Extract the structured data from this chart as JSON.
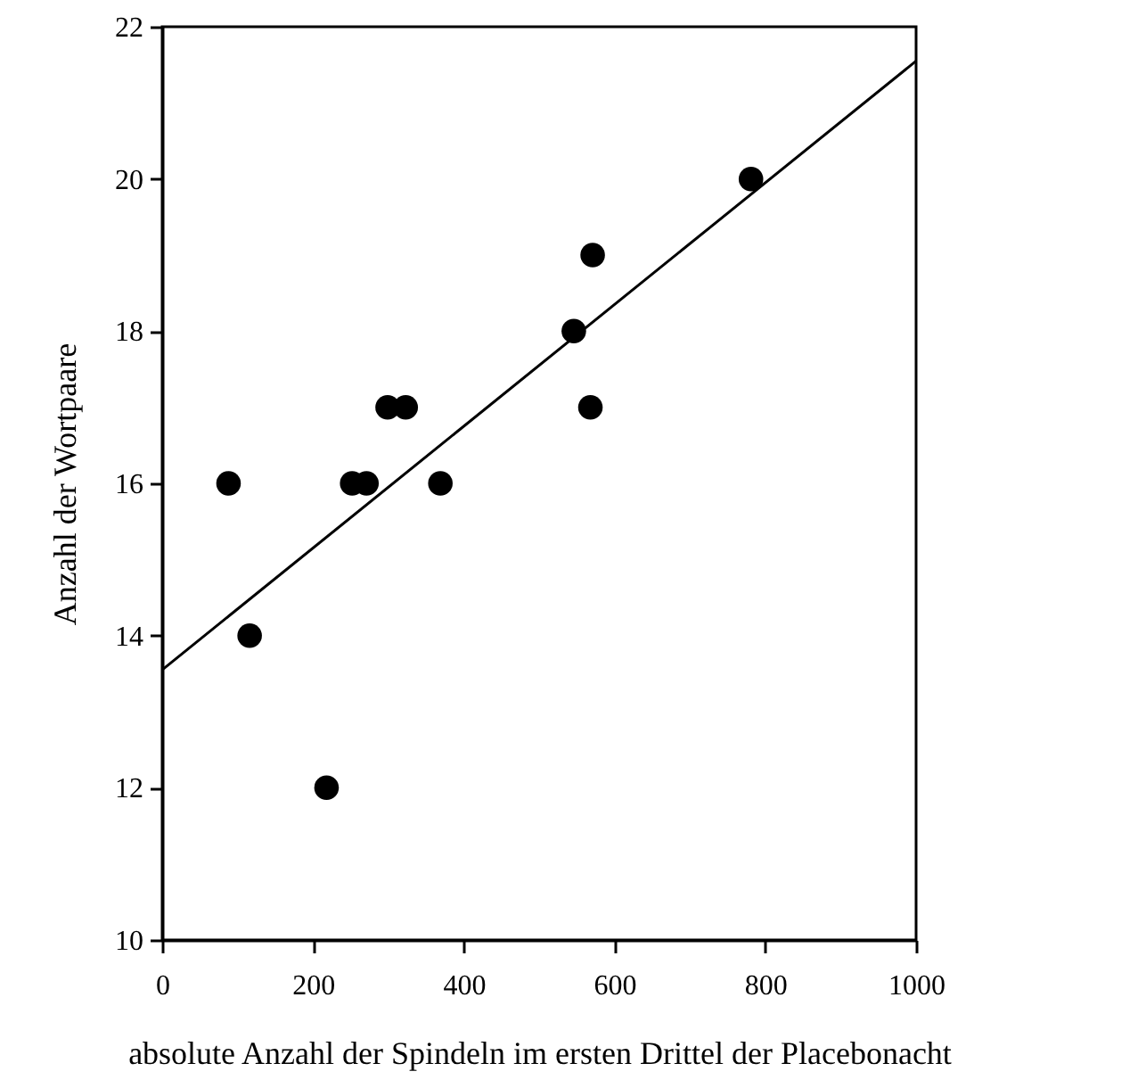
{
  "chart_data": {
    "type": "scatter",
    "xlabel": "absolute Anzahl der Spindeln im ersten Drittel der Placebonacht",
    "ylabel": "Anzahl der Wortpaare",
    "xlim": [
      0,
      1000
    ],
    "xticks": [
      0,
      200,
      400,
      600,
      800,
      1000
    ],
    "ylim": [
      10,
      22
    ],
    "yticks": [
      10,
      12,
      14,
      16,
      18,
      20,
      22
    ],
    "grid": false,
    "series": [
      {
        "marker": "circle",
        "color": "#000000",
        "x": [
          88,
          116,
          218,
          252,
          271,
          299,
          323,
          369,
          546,
          568,
          571,
          781
        ],
        "values": [
          16,
          14,
          12,
          16,
          16,
          17,
          17,
          16,
          18,
          17,
          19,
          20
        ]
      },
      {
        "type": "line",
        "marker": "none",
        "color": "#000000",
        "x": [
          0,
          1000
        ],
        "values": [
          13.55,
          21.55
        ]
      }
    ]
  }
}
